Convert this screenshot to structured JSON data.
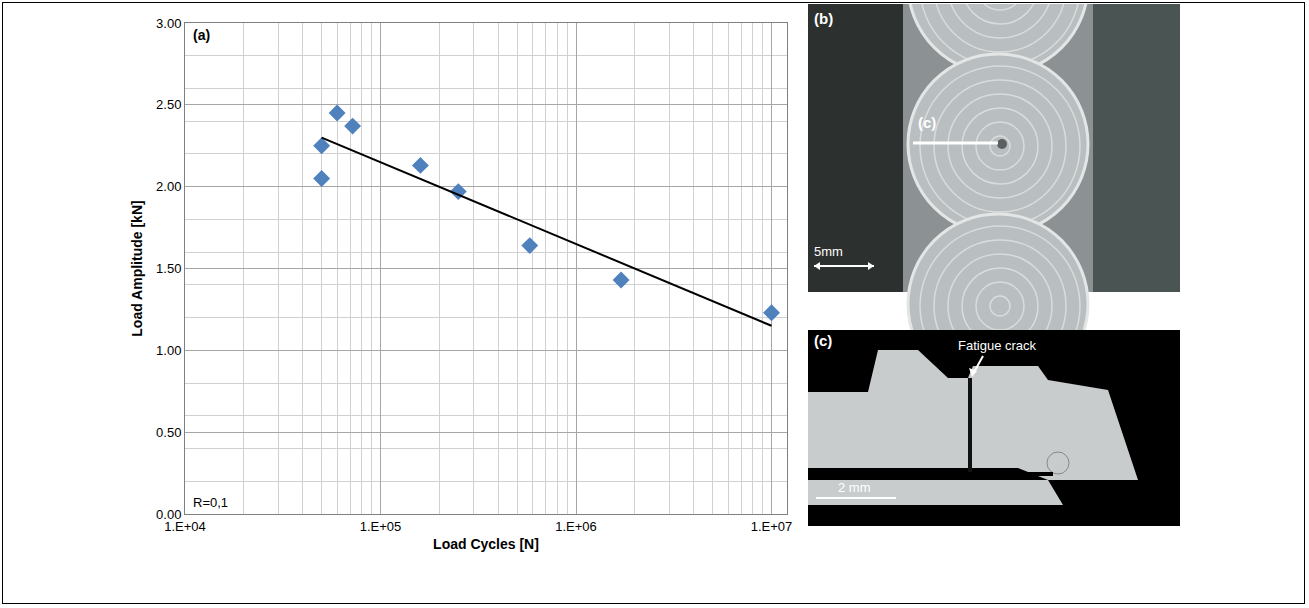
{
  "chart_data": {
    "type": "scatter",
    "panel_label": "(a)",
    "x_label": "Load Cycles [N]",
    "y_label": "Load Amplitude [kN]",
    "annotations": [
      "R=0,1"
    ],
    "log": "x",
    "grid": true,
    "xlim": [
      10000,
      12000000
    ],
    "xticks": [
      {
        "value": 10000,
        "label": "1.E+04"
      },
      {
        "value": 100000,
        "label": "1.E+05"
      },
      {
        "value": 1000000,
        "label": "1.E+06"
      },
      {
        "value": 10000000,
        "label": "1.E+07"
      }
    ],
    "ylim": [
      0,
      3
    ],
    "yticks": [
      {
        "value": 0,
        "label": "0.00"
      },
      {
        "value": 0.5,
        "label": "0.50"
      },
      {
        "value": 1,
        "label": "1.00"
      },
      {
        "value": 1.5,
        "label": "1.50"
      },
      {
        "value": 2,
        "label": "2.00"
      },
      {
        "value": 2.5,
        "label": "2.50"
      },
      {
        "value": 3,
        "label": "3.00"
      }
    ],
    "series": [
      {
        "type": "scatter",
        "marker": "diamond",
        "color": "#4f81bd",
        "x": [
          50000,
          50000,
          60000,
          72000,
          160000,
          250000,
          580000,
          1700000,
          10000000
        ],
        "values": [
          2.05,
          2.25,
          2.45,
          2.37,
          2.13,
          1.97,
          1.64,
          1.43,
          1.23
        ]
      },
      {
        "type": "line",
        "line_style": "solid",
        "color": "#000000",
        "x": [
          50000,
          10000000
        ],
        "values": [
          2.3,
          1.15
        ]
      }
    ]
  },
  "image_panels": [
    {
      "label": "(b)",
      "marker_label": "(c)",
      "scale_bar": "5mm"
    },
    {
      "label": "(c)",
      "annotation": "Fatigue crack",
      "scale_bar": "2 mm"
    }
  ]
}
